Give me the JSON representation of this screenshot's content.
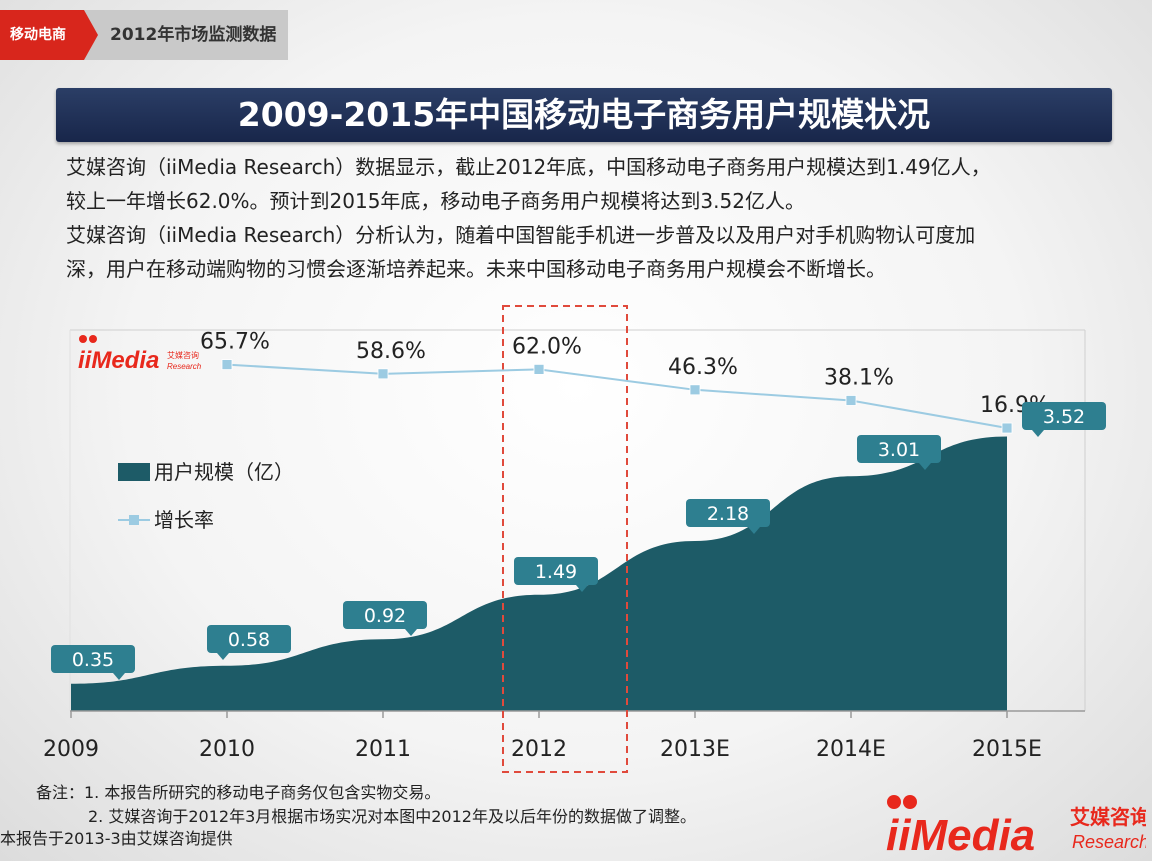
{
  "breadcrumb": {
    "tag": "移动电商",
    "text": "2012年市场监测数据"
  },
  "title": "2009-2015年中国移动电子商务用户规模状况",
  "description": {
    "line1": "艾媒咨询（iiMedia Research）数据显示，截止2012年底，中国移动电子商务用户规模达到1.49亿人，",
    "line2": "较上一年增长62.0%。预计到2015年底，移动电子商务用户规模将达到3.52亿人。",
    "line3": "艾媒咨询（iiMedia Research）分析认为，随着中国智能手机进一步普及以及用户对手机购物认可度加",
    "line4": "深，用户在移动端购物的习惯会逐渐培养起来。未来中国移动电子商务用户规模会不断增长。"
  },
  "chart_data": {
    "type": "area+line",
    "categories": [
      "2009",
      "2010",
      "2011",
      "2012",
      "2013E",
      "2014E",
      "2015E"
    ],
    "series": [
      {
        "name": "用户规模（亿）",
        "type": "area",
        "values": [
          0.35,
          0.58,
          0.92,
          1.49,
          2.18,
          3.01,
          3.52
        ],
        "labels": [
          "0.35",
          "0.58",
          "0.92",
          "1.49",
          "2.18",
          "3.01",
          "3.52"
        ]
      },
      {
        "name": "增长率",
        "type": "line",
        "values": [
          null,
          65.7,
          58.6,
          62.0,
          46.3,
          38.1,
          16.9
        ],
        "labels": [
          "",
          "65.7%",
          "58.6%",
          "62.0%",
          "46.3%",
          "38.1%",
          "16.9%"
        ]
      }
    ],
    "highlight_category": "2012",
    "legend_position": "left",
    "colors": {
      "area": "#1d5b67",
      "line": "#9ccbe2",
      "label_bg": "#2e7f90",
      "highlight": "#e04a3c"
    }
  },
  "chart_logo": {
    "brand": "iiMedia",
    "sub_cn": "艾媒咨询",
    "sub_en": "Research"
  },
  "notes": {
    "line1": "备注：1. 本报告所研究的移动电子商务仅包含实物交易。",
    "line2": "2. 艾媒咨询于2012年3月根据市场实况对本图中2012年及以后年份的数据做了调整。",
    "line3": "本报告于2013-3由艾媒咨询提供"
  },
  "footer_logo": {
    "brand": "iiMedia",
    "cn": "艾媒咨询",
    "en": "Research"
  }
}
